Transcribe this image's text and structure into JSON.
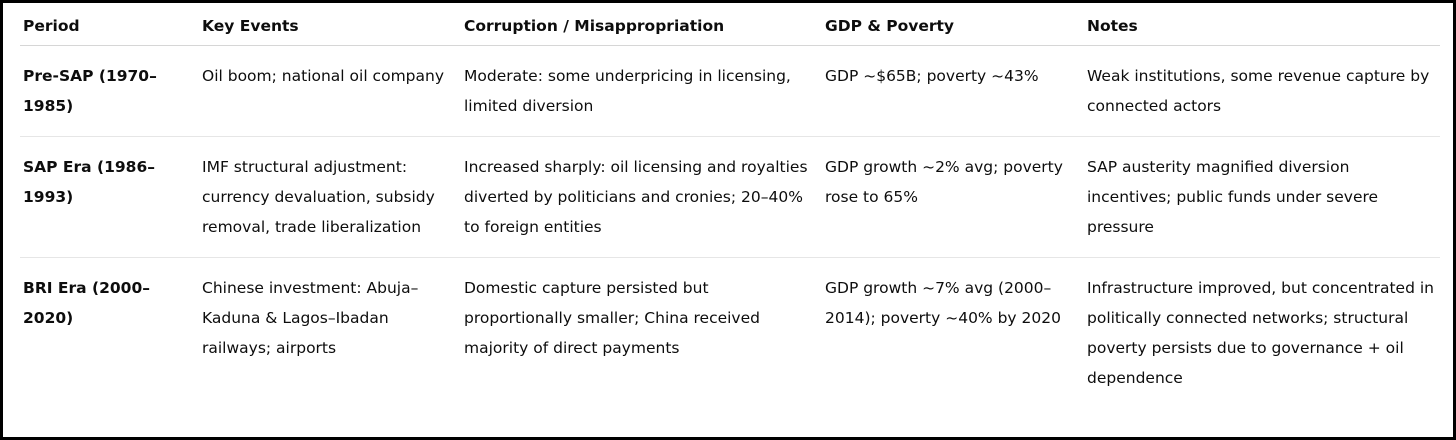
{
  "table": {
    "headers": [
      "Period",
      "Key Events",
      "Corruption / Misappropriation",
      "GDP & Poverty",
      "Notes"
    ],
    "rows": [
      {
        "period": "Pre-SAP (1970–1985)",
        "key_events": "Oil boom; national oil company",
        "corruption": "Moderate: some underpricing in licensing, limited diversion",
        "gdp_poverty": "GDP ~$65B; poverty ~43%",
        "notes": "Weak institutions, some revenue capture by connected actors"
      },
      {
        "period": "SAP Era (1986–1993)",
        "key_events": "IMF structural adjustment: currency devaluation, subsidy removal, trade liberalization",
        "corruption": "Increased sharply: oil licensing and royalties diverted by politicians and cronies; 20–40% to foreign entities",
        "gdp_poverty": "GDP growth ~2% avg; poverty rose to 65%",
        "notes": "SAP austerity magnified diversion incentives; public funds under severe pressure"
      },
      {
        "period": "BRI Era (2000–2020)",
        "key_events": "Chinese investment: Abuja–Kaduna & Lagos–Ibadan railways; airports",
        "corruption": "Domestic capture persisted but proportionally smaller; China received majority of direct payments",
        "gdp_poverty": "GDP growth ~7% avg (2000–2014); poverty ~40% by 2020",
        "notes": "Infrastructure improved, but concentrated in politically connected networks; structural poverty persists due to governance + oil dependence"
      }
    ]
  }
}
